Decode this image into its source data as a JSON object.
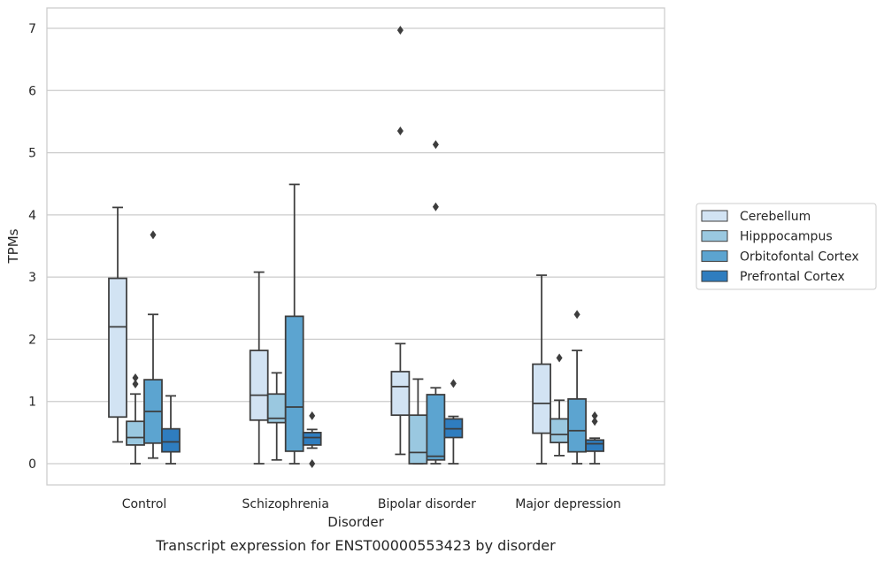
{
  "caption": "Transcript expression for ENST00000553423 by disorder",
  "chart_data": {
    "type": "box",
    "title": "",
    "xlabel": "Disorder",
    "ylabel": "TPMs",
    "ylim": [
      -0.33,
      7.33
    ],
    "yticks": [
      0,
      1,
      2,
      3,
      4,
      5,
      6,
      7
    ],
    "grid": "horizontal",
    "legend_position": "right",
    "categories": [
      "Control",
      "Schizophrenia",
      "Bipolar disorder",
      "Major depression"
    ],
    "series": [
      {
        "name": "Cerebellum",
        "color": "#d2e3f3",
        "boxes": [
          {
            "whislo": 0.35,
            "q1": 0.75,
            "med": 2.2,
            "q3": 2.98,
            "whishi": 4.12,
            "fliers": []
          },
          {
            "whislo": 0.0,
            "q1": 0.7,
            "med": 1.1,
            "q3": 1.82,
            "whishi": 3.08,
            "fliers": []
          },
          {
            "whislo": 0.15,
            "q1": 0.78,
            "med": 1.24,
            "q3": 1.48,
            "whishi": 1.93,
            "fliers": [
              5.35,
              6.97
            ]
          },
          {
            "whislo": 0.0,
            "q1": 0.49,
            "med": 0.97,
            "q3": 1.6,
            "whishi": 3.03,
            "fliers": []
          }
        ]
      },
      {
        "name": "Hipppocampus",
        "color": "#9ac8e0",
        "boxes": [
          {
            "whislo": 0.0,
            "q1": 0.3,
            "med": 0.42,
            "q3": 0.68,
            "whishi": 1.12,
            "fliers": [
              1.28,
              1.38
            ]
          },
          {
            "whislo": 0.06,
            "q1": 0.66,
            "med": 0.73,
            "q3": 1.12,
            "whishi": 1.46,
            "fliers": []
          },
          {
            "whislo": 0.0,
            "q1": 0.0,
            "med": 0.18,
            "q3": 0.78,
            "whishi": 1.36,
            "fliers": []
          },
          {
            "whislo": 0.13,
            "q1": 0.34,
            "med": 0.47,
            "q3": 0.72,
            "whishi": 1.02,
            "fliers": [
              1.7
            ]
          }
        ]
      },
      {
        "name": "Orbitofontal Cortex",
        "color": "#5ca4d0",
        "boxes": [
          {
            "whislo": 0.09,
            "q1": 0.33,
            "med": 0.84,
            "q3": 1.35,
            "whishi": 2.4,
            "fliers": [
              3.68
            ]
          },
          {
            "whislo": 0.0,
            "q1": 0.2,
            "med": 0.91,
            "q3": 2.37,
            "whishi": 4.49,
            "fliers": []
          },
          {
            "whislo": 0.0,
            "q1": 0.06,
            "med": 0.12,
            "q3": 1.11,
            "whishi": 1.22,
            "fliers": [
              4.13,
              5.13
            ]
          },
          {
            "whislo": 0.0,
            "q1": 0.19,
            "med": 0.53,
            "q3": 1.04,
            "whishi": 1.82,
            "fliers": [
              2.4
            ]
          }
        ]
      },
      {
        "name": "Prefrontal Cortex",
        "color": "#2f7dbf",
        "boxes": [
          {
            "whislo": 0.0,
            "q1": 0.19,
            "med": 0.35,
            "q3": 0.56,
            "whishi": 1.09,
            "fliers": []
          },
          {
            "whislo": 0.25,
            "q1": 0.3,
            "med": 0.42,
            "q3": 0.5,
            "whishi": 0.55,
            "fliers": [
              0.0,
              0.77
            ]
          },
          {
            "whislo": 0.0,
            "q1": 0.42,
            "med": 0.56,
            "q3": 0.72,
            "whishi": 0.76,
            "fliers": [
              1.29
            ]
          },
          {
            "whislo": 0.0,
            "q1": 0.2,
            "med": 0.32,
            "q3": 0.38,
            "whishi": 0.41,
            "fliers": [
              0.68,
              0.77
            ]
          }
        ]
      }
    ]
  }
}
